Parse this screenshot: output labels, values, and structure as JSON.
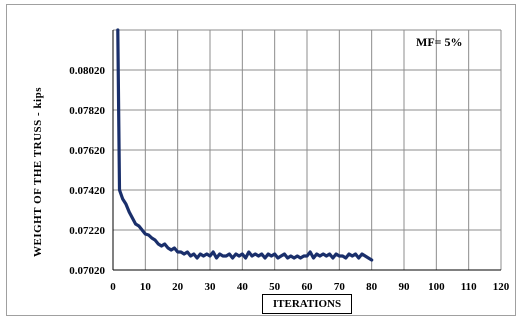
{
  "chart_data": {
    "type": "line",
    "title": "",
    "xlabel": "ITERATIONS",
    "ylabel": "WEIGHT   OF  THE  TRUSS  -  kips",
    "annotation": "MF=   5%",
    "xlim": [
      0,
      120
    ],
    "ylim": [
      0.0702,
      0.0822
    ],
    "x_ticks": [
      "0",
      "10",
      "20",
      "30",
      "40",
      "50",
      "60",
      "70",
      "80",
      "90",
      "100",
      "110",
      "120"
    ],
    "y_ticks": [
      "0.07020",
      "0.07220",
      "0.07420",
      "0.07620",
      "0.07820",
      "0.08020"
    ],
    "x_tick_values": [
      0,
      10,
      20,
      30,
      40,
      50,
      60,
      70,
      80,
      90,
      100,
      110,
      120
    ],
    "y_tick_values": [
      0.0702,
      0.0722,
      0.0742,
      0.0762,
      0.0782,
      0.0802
    ],
    "grid": true,
    "series": [
      {
        "color": "#1a2f6b",
        "x": [
          1.5,
          2,
          3,
          4,
          5,
          6,
          7,
          8,
          9,
          10,
          11,
          12,
          13,
          14,
          15,
          16,
          17,
          18,
          19,
          20,
          21,
          22,
          23,
          24,
          25,
          26,
          27,
          28,
          29,
          30,
          31,
          32,
          33,
          34,
          35,
          36,
          37,
          38,
          39,
          40,
          41,
          42,
          43,
          44,
          45,
          46,
          47,
          48,
          49,
          50,
          51,
          52,
          53,
          54,
          55,
          56,
          57,
          58,
          59,
          60,
          61,
          62,
          63,
          64,
          65,
          66,
          67,
          68,
          69,
          70,
          71,
          72,
          73,
          74,
          75,
          76,
          77,
          78,
          79,
          80
        ],
        "y": [
          0.0822,
          0.0742,
          0.07375,
          0.0735,
          0.0731,
          0.0728,
          0.0725,
          0.0724,
          0.0722,
          0.072,
          0.07195,
          0.0718,
          0.0717,
          0.0715,
          0.0714,
          0.0715,
          0.0713,
          0.0712,
          0.0713,
          0.0711,
          0.0711,
          0.071,
          0.0711,
          0.0709,
          0.071,
          0.0708,
          0.071,
          0.0709,
          0.071,
          0.0709,
          0.0711,
          0.0708,
          0.071,
          0.0709,
          0.0709,
          0.071,
          0.0708,
          0.071,
          0.0709,
          0.071,
          0.0708,
          0.0711,
          0.0709,
          0.071,
          0.0709,
          0.071,
          0.0708,
          0.071,
          0.0709,
          0.071,
          0.0708,
          0.0709,
          0.071,
          0.0708,
          0.0709,
          0.0708,
          0.0709,
          0.0708,
          0.0709,
          0.0709,
          0.0711,
          0.0708,
          0.071,
          0.0709,
          0.071,
          0.0709,
          0.071,
          0.0708,
          0.071,
          0.0709,
          0.0709,
          0.0708,
          0.071,
          0.0709,
          0.071,
          0.0708,
          0.071,
          0.0709,
          0.0708,
          0.0707
        ]
      }
    ]
  }
}
